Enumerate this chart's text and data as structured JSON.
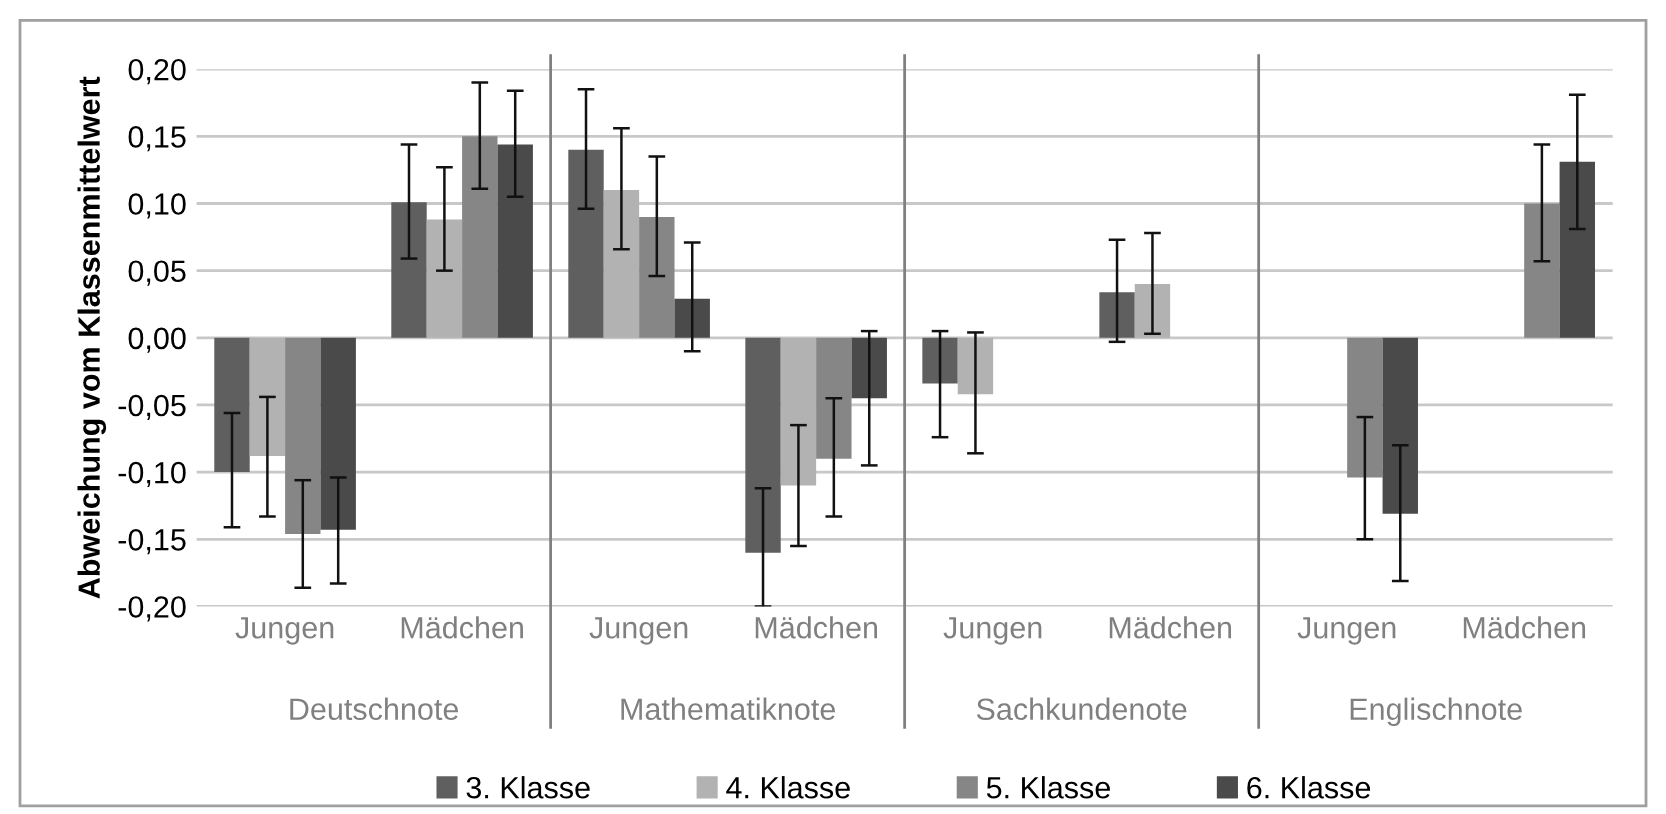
{
  "chart_data": {
    "type": "bar",
    "ylabel": "Abweichung vom Klassenmittelwert",
    "categories": [
      "Jungen",
      "Mädchen",
      "Jungen",
      "Mädchen",
      "Jungen",
      "Mädchen",
      "Jungen",
      "Mädchen"
    ],
    "annotations": [
      "Deutschnote",
      "Mathematiknote",
      "Sachkundenote",
      "Englischnote"
    ],
    "series": [
      {
        "name": "3. Klasse",
        "color": "#5f5f5f",
        "values": [
          -0.1,
          0.101,
          0.14,
          -0.16,
          -0.034,
          0.034,
          null,
          null
        ],
        "errors": [
          [
            -0.141,
            -0.056
          ],
          [
            0.059,
            0.144
          ],
          [
            0.096,
            0.185
          ],
          [
            -0.2,
            -0.112
          ],
          [
            -0.074,
            0.005
          ],
          [
            -0.003,
            0.073
          ],
          null,
          null
        ]
      },
      {
        "name": "4. Klasse",
        "color": "#b2b2b2",
        "values": [
          -0.088,
          0.088,
          0.11,
          -0.11,
          -0.042,
          0.04,
          null,
          null
        ],
        "errors": [
          [
            -0.133,
            -0.044
          ],
          [
            0.05,
            0.127
          ],
          [
            0.066,
            0.156
          ],
          [
            -0.155,
            -0.065
          ],
          [
            -0.086,
            0.004
          ],
          [
            0.003,
            0.078
          ],
          null,
          null
        ]
      },
      {
        "name": "5. Klasse",
        "color": "#868686",
        "values": [
          -0.146,
          0.15,
          0.09,
          -0.09,
          null,
          null,
          -0.104,
          0.1
        ],
        "errors": [
          [
            -0.186,
            -0.106
          ],
          [
            0.111,
            0.19
          ],
          [
            0.046,
            0.135
          ],
          [
            -0.133,
            -0.045
          ],
          null,
          null,
          [
            -0.15,
            -0.059
          ],
          [
            0.057,
            0.144
          ]
        ]
      },
      {
        "name": "6. Klasse",
        "color": "#4a4a4a",
        "values": [
          -0.143,
          0.144,
          0.029,
          -0.045,
          null,
          null,
          -0.131,
          0.131
        ],
        "errors": [
          [
            -0.183,
            -0.104
          ],
          [
            0.105,
            0.184
          ],
          [
            -0.01,
            0.071
          ],
          [
            -0.095,
            0.005
          ],
          null,
          null,
          [
            -0.181,
            -0.08
          ],
          [
            0.081,
            0.181
          ]
        ]
      }
    ],
    "ylim": [
      -0.2,
      0.2
    ],
    "yticks": [
      {
        "value": -0.2,
        "label": "-0,20"
      },
      {
        "value": -0.15,
        "label": "-0,15"
      },
      {
        "value": -0.1,
        "label": "-0,10"
      },
      {
        "value": -0.05,
        "label": "-0,05"
      },
      {
        "value": 0,
        "label": "0,00"
      },
      {
        "value": 0.05,
        "label": "0,05"
      },
      {
        "value": 0.1,
        "label": "0,10"
      },
      {
        "value": 0.15,
        "label": "0,15"
      },
      {
        "value": 0.2,
        "label": "0,20"
      }
    ],
    "grid": "y",
    "legend": "bottom"
  }
}
